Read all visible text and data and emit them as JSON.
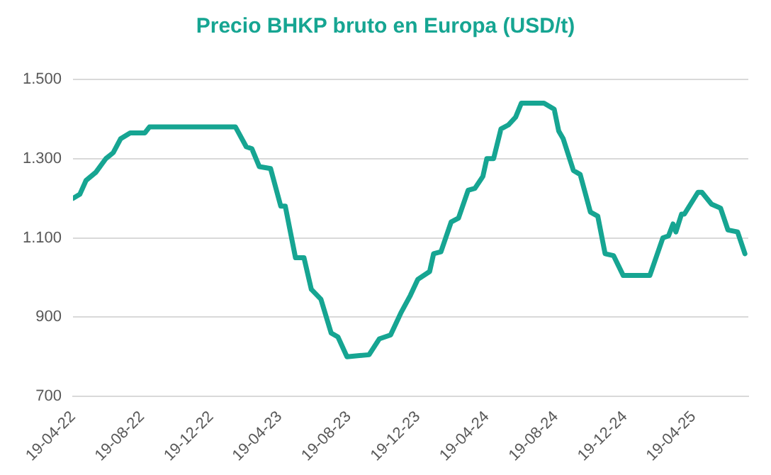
{
  "chart_data": {
    "type": "line",
    "title": "Precio BHKP bruto en Europa (USD/t)",
    "x": [
      "2022-04-19",
      "2022-05-01",
      "2022-05-12",
      "2022-05-29",
      "2022-06-16",
      "2022-06-29",
      "2022-07-12",
      "2022-07-29",
      "2022-08-24",
      "2022-09-01",
      "2023-01-31",
      "2023-02-19",
      "2023-03-01",
      "2023-03-14",
      "2023-04-03",
      "2023-04-21",
      "2023-04-29",
      "2023-05-17",
      "2023-06-01",
      "2023-06-14",
      "2023-07-01",
      "2023-07-19",
      "2023-07-31",
      "2023-08-16",
      "2023-09-24",
      "2023-10-12",
      "2023-11-01",
      "2023-11-19",
      "2023-12-06",
      "2023-12-19",
      "2024-01-09",
      "2024-01-16",
      "2024-01-29",
      "2024-02-16",
      "2024-02-29",
      "2024-03-17",
      "2024-03-29",
      "2024-04-12",
      "2024-04-19",
      "2024-05-01",
      "2024-05-14",
      "2024-05-27",
      "2024-06-09",
      "2024-06-19",
      "2024-07-29",
      "2024-08-16",
      "2024-08-24",
      "2024-09-01",
      "2024-09-19",
      "2024-10-01",
      "2024-10-19",
      "2024-11-01",
      "2024-11-14",
      "2024-11-29",
      "2024-12-16",
      "2025-02-01",
      "2025-02-24",
      "2025-03-06",
      "2025-03-14",
      "2025-03-19",
      "2025-03-29",
      "2025-04-03",
      "2025-04-27",
      "2025-05-04",
      "2025-05-21",
      "2025-06-06",
      "2025-06-19",
      "2025-07-06",
      "2025-07-19"
    ],
    "series": [
      {
        "color": "#16a592",
        "values": [
          1200,
          1210,
          1245,
          1265,
          1300,
          1315,
          1350,
          1365,
          1365,
          1380,
          1380,
          1330,
          1325,
          1280,
          1275,
          1180,
          1180,
          1050,
          1050,
          970,
          945,
          860,
          850,
          800,
          805,
          845,
          855,
          910,
          955,
          995,
          1015,
          1060,
          1065,
          1140,
          1150,
          1220,
          1225,
          1255,
          1300,
          1300,
          1375,
          1385,
          1405,
          1440,
          1440,
          1425,
          1370,
          1350,
          1270,
          1260,
          1165,
          1155,
          1060,
          1055,
          1005,
          1005,
          1100,
          1105,
          1135,
          1115,
          1160,
          1160,
          1215,
          1215,
          1185,
          1175,
          1120,
          1115,
          1060
        ]
      }
    ],
    "xlim": [
      "2022-04-19",
      "2025-07-25"
    ],
    "xticks": [
      {
        "value": "2022-04-19",
        "label": "19-04-22"
      },
      {
        "value": "2022-08-19",
        "label": "19-08-22"
      },
      {
        "value": "2022-12-19",
        "label": "19-12-22"
      },
      {
        "value": "2023-04-19",
        "label": "19-04-23"
      },
      {
        "value": "2023-08-19",
        "label": "19-08-23"
      },
      {
        "value": "2023-12-19",
        "label": "19-12-23"
      },
      {
        "value": "2024-04-19",
        "label": "19-04-24"
      },
      {
        "value": "2024-08-19",
        "label": "19-08-24"
      },
      {
        "value": "2024-12-19",
        "label": "19-12-24"
      },
      {
        "value": "2025-04-19",
        "label": "19-04-25"
      }
    ],
    "ylim": [
      700,
      1500
    ],
    "yticks": [
      {
        "value": 700,
        "label": "700"
      },
      {
        "value": 900,
        "label": "900"
      },
      {
        "value": 1100,
        "label": "1.100"
      },
      {
        "value": 1300,
        "label": "1.300"
      },
      {
        "value": 1500,
        "label": "1.500"
      }
    ],
    "grid": "y",
    "legend": false,
    "marker": "none",
    "line_style": "solid"
  }
}
